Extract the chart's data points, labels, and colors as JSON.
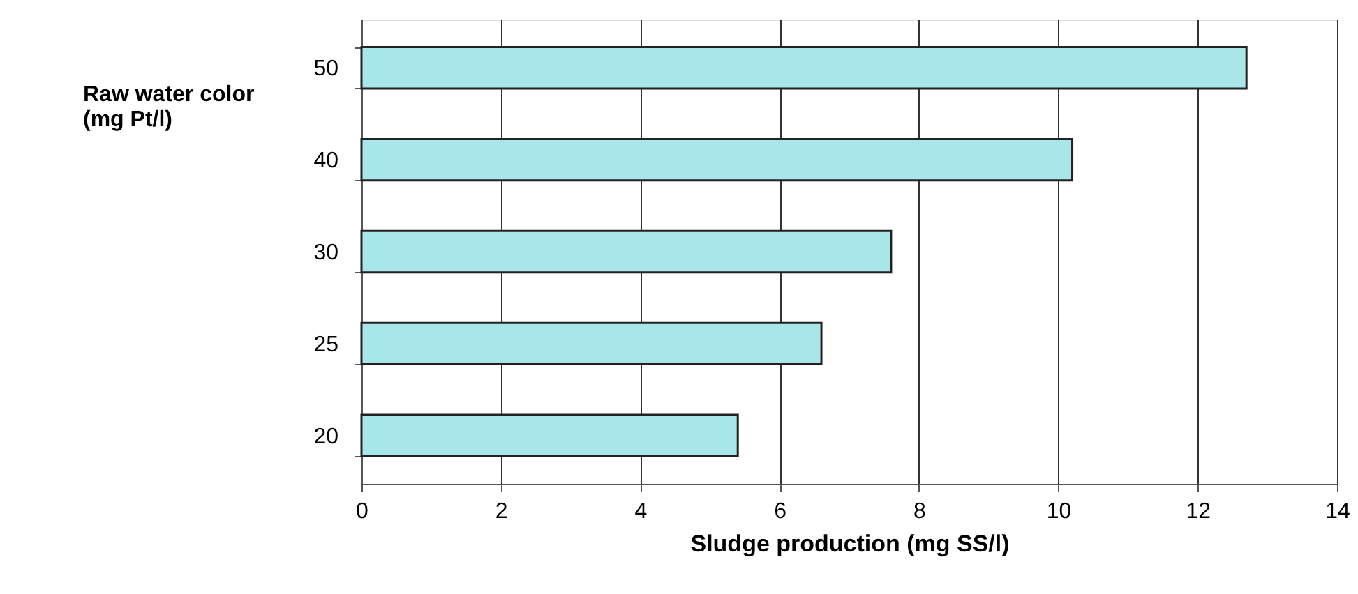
{
  "chart_data": {
    "type": "bar",
    "orientation": "horizontal",
    "xlabel": "Sludge production (mg SS/l)",
    "ylabel": "Raw water color\n(mg Pt/l)",
    "categories": [
      "50",
      "40",
      "30",
      "25",
      "20"
    ],
    "values": [
      12.7,
      10.2,
      7.6,
      6.6,
      5.4
    ],
    "color": "#a9e6ea",
    "xlim": [
      0,
      14
    ],
    "xticks": [
      0,
      2,
      4,
      6,
      8,
      10,
      12,
      14
    ],
    "grid": "x"
  }
}
